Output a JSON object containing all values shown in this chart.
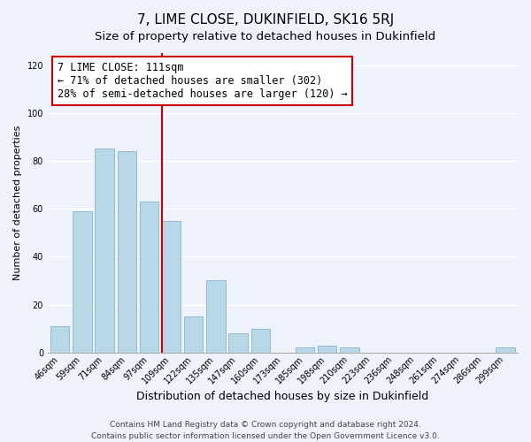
{
  "title": "7, LIME CLOSE, DUKINFIELD, SK16 5RJ",
  "subtitle": "Size of property relative to detached houses in Dukinfield",
  "xlabel": "Distribution of detached houses by size in Dukinfield",
  "ylabel": "Number of detached properties",
  "categories": [
    "46sqm",
    "59sqm",
    "71sqm",
    "84sqm",
    "97sqm",
    "109sqm",
    "122sqm",
    "135sqm",
    "147sqm",
    "160sqm",
    "173sqm",
    "185sqm",
    "198sqm",
    "210sqm",
    "223sqm",
    "236sqm",
    "248sqm",
    "261sqm",
    "274sqm",
    "286sqm",
    "299sqm"
  ],
  "values": [
    11,
    59,
    85,
    84,
    63,
    55,
    15,
    30,
    8,
    10,
    0,
    2,
    3,
    2,
    0,
    0,
    0,
    0,
    0,
    0,
    2
  ],
  "bar_color": "#b8d8e8",
  "bar_edge_color": "#8ab4cc",
  "vline_x_index": 5,
  "vline_color": "#cc0000",
  "annotation_text": "7 LIME CLOSE: 111sqm\n← 71% of detached houses are smaller (302)\n28% of semi-detached houses are larger (120) →",
  "annotation_box_color": "#ffffff",
  "annotation_box_edge_color": "#cc0000",
  "ylim": [
    0,
    125
  ],
  "yticks": [
    0,
    20,
    40,
    60,
    80,
    100,
    120
  ],
  "footer_line1": "Contains HM Land Registry data © Crown copyright and database right 2024.",
  "footer_line2": "Contains public sector information licensed under the Open Government Licence v3.0.",
  "background_color": "#eef2fa",
  "title_fontsize": 11,
  "subtitle_fontsize": 9.5,
  "xlabel_fontsize": 9,
  "ylabel_fontsize": 8,
  "tick_fontsize": 7,
  "annotation_fontsize": 8.5,
  "footer_fontsize": 6.5
}
